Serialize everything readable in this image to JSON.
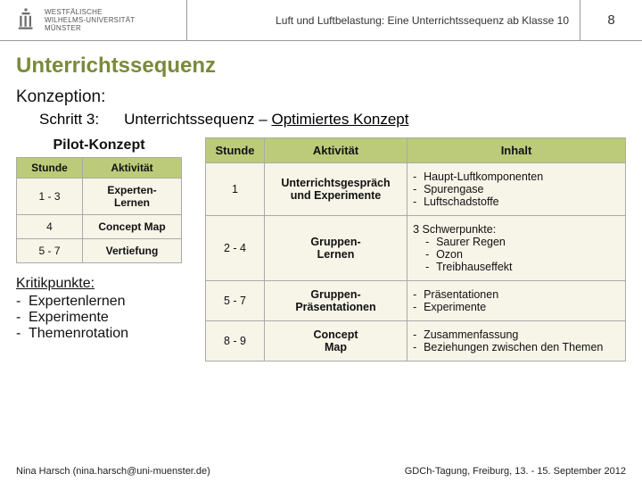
{
  "header": {
    "uni_line1": "WESTFÄLISCHE",
    "uni_line2": "WILHELMS-UNIVERSITÄT",
    "uni_line3": "MÜNSTER",
    "title": "Luft und Luftbelastung: Eine Unterrichtssequenz ab Klasse 10",
    "page": "8",
    "logo_color": "#6b6b6b"
  },
  "colors": {
    "heading": "#7a8a3a",
    "table_header_bg": "#bccb7a",
    "table_cell_bg": "#f7f4e8",
    "border": "#aaaaaa"
  },
  "main": {
    "title": "Unterrichtssequenz",
    "subtitle": "Konzeption:",
    "step_label": "Schritt 3:",
    "opt_prefix": "Unterrichtssequenz – ",
    "opt_underlined": "Optimiertes Konzept"
  },
  "pilot": {
    "heading": "Pilot-Konzept",
    "columns": [
      "Stunde",
      "Aktivität"
    ],
    "rows": [
      {
        "stunde": "1 - 3",
        "akt": "Experten-\nLernen"
      },
      {
        "stunde": "4",
        "akt": "Concept Map"
      },
      {
        "stunde": "5 - 7",
        "akt": "Vertiefung"
      }
    ]
  },
  "opt": {
    "columns": [
      "Stunde",
      "Aktivität",
      "Inhalt"
    ],
    "rows": [
      {
        "stunde": "1",
        "akt": "Unterrichtsgespräch und Experimente",
        "inhalt": [
          "Haupt-Luftkomponenten",
          "Spurengase",
          "Luftschadstoffe"
        ]
      },
      {
        "stunde": "2 - 4",
        "akt": "Gruppen-\nLernen",
        "inhalt_prefix": "3 Schwerpunkte:",
        "inhalt": [
          "Saurer Regen",
          "Ozon",
          "Treibhauseffekt"
        ]
      },
      {
        "stunde": "5 - 7",
        "akt": "Gruppen-\nPräsentationen",
        "inhalt": [
          "Präsentationen",
          "Experimente"
        ]
      },
      {
        "stunde": "8 - 9",
        "akt": "Concept\nMap",
        "inhalt": [
          "Zusammenfassung",
          "Beziehungen zwischen den Themen"
        ]
      }
    ]
  },
  "kritik": {
    "heading": "Kritikpunkte:",
    "items": [
      "Expertenlernen",
      "Experimente",
      "Themenrotation"
    ]
  },
  "footer": {
    "left": "Nina Harsch   (nina.harsch@uni-muenster.de)",
    "right": "GDCh-Tagung,  Freiburg,  13. - 15. September 2012"
  }
}
